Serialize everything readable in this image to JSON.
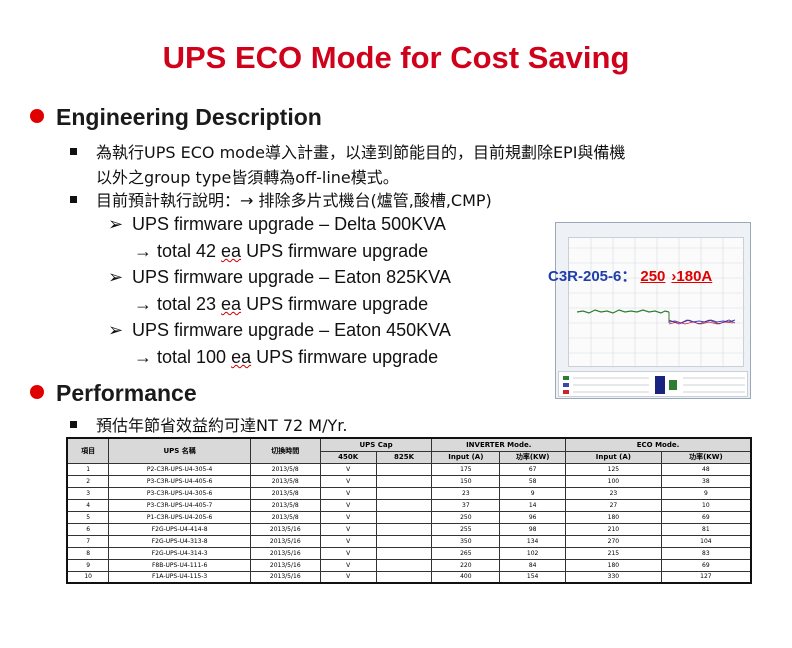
{
  "title": "UPS ECO Mode for Cost Saving",
  "engineering": {
    "heading": "Engineering Description",
    "bullet1_line1": "為執行UPS ECO mode導入計畫，以達到節能目的，目前規劃除EPI與備機",
    "bullet1_line2": "以外之group type皆須轉為off-line模式。",
    "bullet2": "目前預計執行說明：→ 排除多片式機台(爐管,酸槽,CMP)",
    "items": [
      {
        "upgrade": "UPS firmware upgrade – Delta 500KVA",
        "total_prefix": "→ total 42 ",
        "unit": "ea",
        "total_suffix": " UPS firmware upgrade"
      },
      {
        "upgrade": "UPS firmware upgrade – Eaton 825KVA",
        "total_prefix": "→ total 23 ",
        "unit": "ea",
        "total_suffix": " UPS firmware upgrade"
      },
      {
        "upgrade": "UPS firmware upgrade – Eaton 450KVA",
        "total_prefix": "→ total 100 ",
        "unit": "ea",
        "total_suffix": " UPS firmware upgrade"
      }
    ]
  },
  "chart_label": {
    "id": "C3R-205-6：",
    "before": "250",
    "after": "›180A"
  },
  "performance": {
    "heading": "Performance",
    "bullet": "預估年節省效益約可達NT 72 M/Yr."
  },
  "table": {
    "headers": {
      "no": "項目",
      "name": "UPS 名稱",
      "date": "切換時間",
      "cap": "UPS Cap",
      "cap450": "450K",
      "cap825": "825K",
      "inverter": "INVERTER Mode.",
      "eco": "ECO Mode.",
      "input": "Input (A)",
      "power": "功率(KW)"
    },
    "rows": [
      [
        "1",
        "P2-C3R-UPS-U4-305-4",
        "2013/5/8",
        "V",
        "",
        "175",
        "67",
        "125",
        "48"
      ],
      [
        "2",
        "P3-C3R-UPS-U4-405-6",
        "2013/5/8",
        "V",
        "",
        "150",
        "58",
        "100",
        "38"
      ],
      [
        "3",
        "P3-C3R-UPS-U4-305-6",
        "2013/5/8",
        "V",
        "",
        "23",
        "9",
        "23",
        "9"
      ],
      [
        "4",
        "P3-C3R-UPS-U4-405-7",
        "2013/5/8",
        "V",
        "",
        "37",
        "14",
        "27",
        "10"
      ],
      [
        "5",
        "P1-C3R-UPS-U4-205-6",
        "2013/5/8",
        "V",
        "",
        "250",
        "96",
        "180",
        "69"
      ],
      [
        "6",
        "F2G-UPS-U4-414-8",
        "2013/5/16",
        "V",
        "",
        "255",
        "98",
        "210",
        "81"
      ],
      [
        "7",
        "F2G-UPS-U4-313-8",
        "2013/5/16",
        "V",
        "",
        "350",
        "134",
        "270",
        "104"
      ],
      [
        "8",
        "F2G-UPS-U4-314-3",
        "2013/5/16",
        "V",
        "",
        "265",
        "102",
        "215",
        "83"
      ],
      [
        "9",
        "F8B-UPS-U4-111-6",
        "2013/5/16",
        "V",
        "",
        "220",
        "84",
        "180",
        "69"
      ],
      [
        "10",
        "F1A-UPS-U4-115-3",
        "2013/5/16",
        "V",
        "",
        "400",
        "154",
        "330",
        "127"
      ]
    ]
  }
}
